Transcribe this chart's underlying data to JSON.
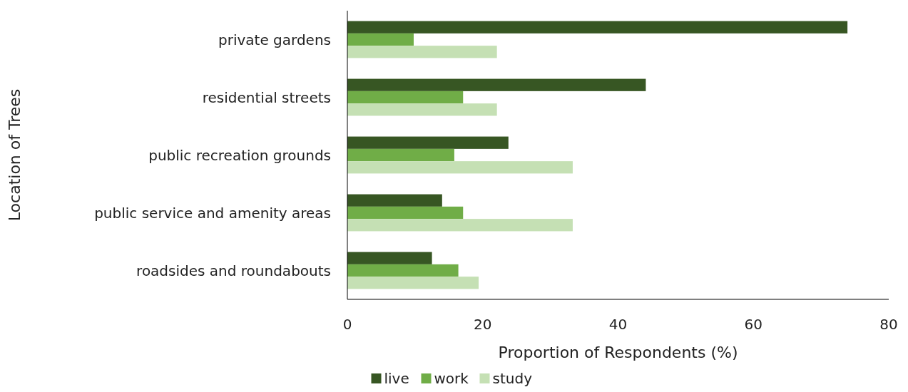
{
  "chart_data": {
    "type": "bar",
    "orientation": "horizontal",
    "xlabel": "Proportion of Respondents (%)",
    "ylabel": "Location of Trees",
    "categories": [
      "private gardens",
      "residential streets",
      "public recreation grounds",
      "public service and amenity areas",
      "roadsides and roundabouts"
    ],
    "series": [
      {
        "name": "live",
        "color": "#375623",
        "values": [
          73.9,
          44.1,
          23.8,
          14.0,
          12.5
        ]
      },
      {
        "name": "work",
        "color": "#70ad47",
        "values": [
          9.8,
          17.1,
          15.8,
          17.1,
          16.4
        ]
      },
      {
        "name": "study",
        "color": "#c5e0b4",
        "values": [
          22.1,
          22.1,
          33.3,
          33.3,
          19.4
        ]
      }
    ],
    "xlim": [
      0,
      80
    ],
    "xticks": [
      0,
      20,
      40,
      60,
      80
    ],
    "grid": false,
    "legend": "bottom"
  }
}
